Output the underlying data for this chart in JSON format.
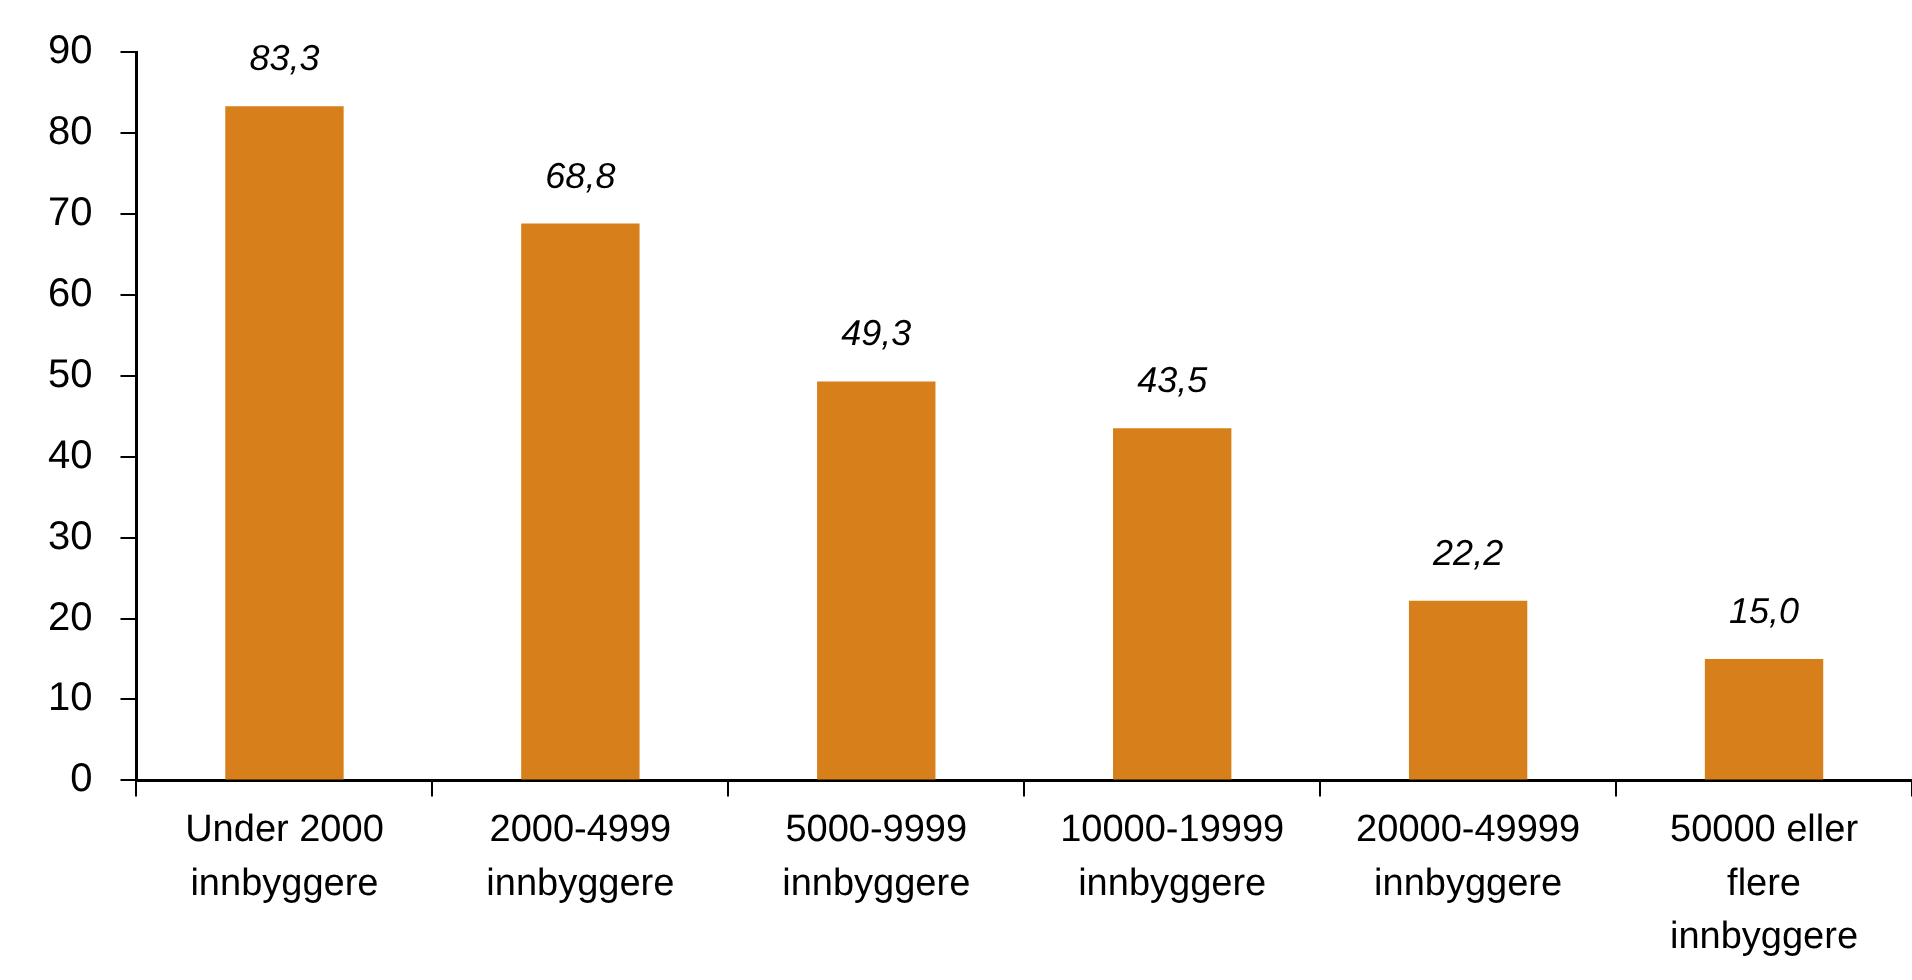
{
  "chart_data": {
    "type": "bar",
    "categories": [
      "Under 2000 innbyggere",
      "2000-4999 innbyggere",
      "5000-9999 innbyggere",
      "10000-19999 innbyggere",
      "20000-49999 innbyggere",
      "50000 eller flere innbyggere"
    ],
    "values": [
      83.3,
      68.8,
      49.3,
      43.5,
      22.2,
      15.0
    ],
    "value_labels": [
      "83,3",
      "68,8",
      "49,3",
      "43,5",
      "22,2",
      "15,0"
    ],
    "color": "#d67f1b",
    "ylim": [
      0,
      90
    ],
    "yticks": [
      0,
      10,
      20,
      30,
      40,
      50,
      60,
      70,
      80,
      90
    ],
    "grid": false
  }
}
